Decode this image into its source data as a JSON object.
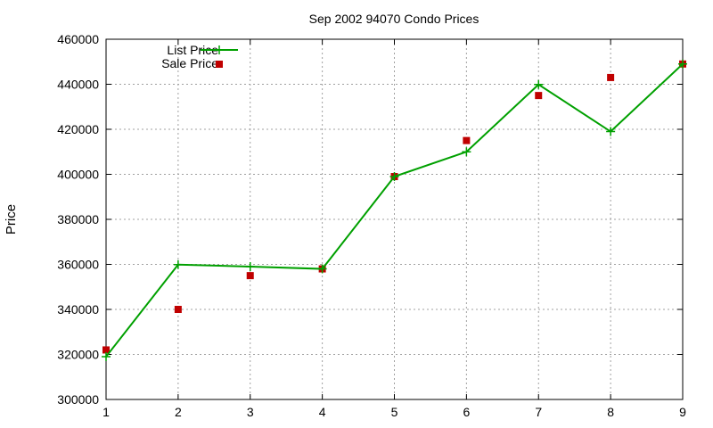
{
  "chart_data": {
    "type": "line",
    "title": "Sep 2002 94070 Condo Prices",
    "xlabel": "",
    "ylabel": "Price",
    "x": [
      1,
      2,
      3,
      4,
      5,
      6,
      7,
      8,
      9
    ],
    "xlim": [
      1,
      9
    ],
    "ylim": [
      300000,
      460000
    ],
    "xticks": [
      "1",
      "2",
      "3",
      "4",
      "5",
      "6",
      "7",
      "8",
      "9"
    ],
    "yticks": [
      "300000",
      "320000",
      "340000",
      "360000",
      "380000",
      "400000",
      "420000",
      "440000",
      "460000"
    ],
    "grid": true,
    "legend_position": "top-left",
    "series": [
      {
        "name": "List Price",
        "style": "line-with-plus-markers",
        "color": "#00a000",
        "values": [
          319000,
          359900,
          359000,
          358000,
          399000,
          410000,
          439900,
          419000,
          449000
        ]
      },
      {
        "name": "Sale Price",
        "style": "square-markers",
        "color": "#c00000",
        "values": [
          322000,
          340000,
          355000,
          358000,
          399000,
          415000,
          435000,
          443000,
          449000
        ]
      }
    ]
  }
}
